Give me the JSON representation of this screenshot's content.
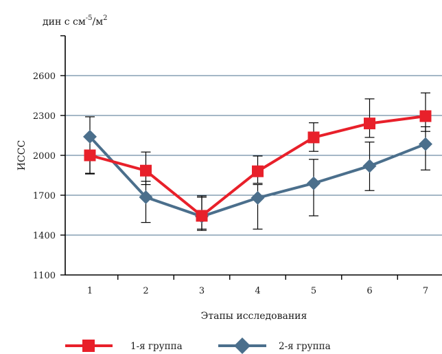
{
  "chart_data": {
    "type": "line",
    "title": "",
    "xlabel": "Этапы исследования",
    "ylabel": "ИССС",
    "unit_label": {
      "base": "дин с см",
      "exp1": "-5",
      "slash": "/",
      "m": "м",
      "exp2": "2"
    },
    "categories": [
      "1",
      "2",
      "3",
      "4",
      "5",
      "6",
      "7"
    ],
    "ylim": [
      1100,
      2900
    ],
    "yticks": [
      1100,
      1400,
      1700,
      2000,
      2300,
      2600
    ],
    "grid": true,
    "legend_position": "bottom",
    "series": [
      {
        "name": "1-я группа",
        "color": "#e8202a",
        "marker": "square",
        "values": [
          2000,
          1885,
          1545,
          1880,
          2135,
          2240,
          2295
        ],
        "err_upper": [
          1995,
          2025,
          1695,
          1995,
          2245,
          2425,
          2470
        ],
        "err_lower": [
          1865,
          1780,
          1435,
          1790,
          2030,
          2135,
          2180
        ]
      },
      {
        "name": "2-я группа",
        "color": "#4b6f8c",
        "marker": "diamond",
        "values": [
          2140,
          1685,
          1540,
          1680,
          1790,
          1920,
          2085
        ],
        "err_upper": [
          2290,
          1805,
          1685,
          1780,
          1970,
          2100,
          2215
        ],
        "err_lower": [
          1860,
          1495,
          1445,
          1445,
          1545,
          1735,
          1890
        ]
      }
    ]
  }
}
